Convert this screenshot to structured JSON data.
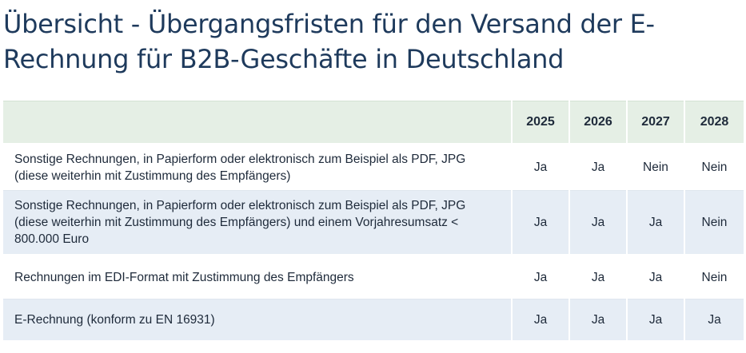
{
  "title": "Übersicht - Übergangsfristen für den Versand der E-Rechnung für B2B-Geschäfte in Deutschland",
  "table": {
    "header": {
      "description": "",
      "years": [
        "2025",
        "2026",
        "2027",
        "2028"
      ]
    },
    "rows": [
      {
        "description": "Sonstige Rechnungen, in Papierform oder elektronisch zum Beispiel als PDF, JPG (diese weiterhin mit Zustimmung des Empfängers)",
        "values": [
          "Ja",
          "Ja",
          "Nein",
          "Nein"
        ]
      },
      {
        "description": "Sonstige Rechnungen, in Papierform oder elektronisch zum Beispiel als PDF, JPG (diese weiterhin mit Zustimmung des Empfängers) und einem Vorjahresumsatz < 800.000 Euro",
        "values": [
          "Ja",
          "Ja",
          "Ja",
          "Nein"
        ]
      },
      {
        "description": "Rechnungen im EDI-Format mit Zustimmung des Empfängers",
        "values": [
          "Ja",
          "Ja",
          "Ja",
          "Nein"
        ]
      },
      {
        "description": "E-Rechnung (konform zu EN 16931)",
        "values": [
          "Ja",
          "Ja",
          "Ja",
          "Ja"
        ]
      }
    ]
  },
  "colors": {
    "title": "#1e3a5c",
    "header_background": "#e5efe5",
    "stripe_background": "#e6edf5",
    "text": "#1e2a3a"
  }
}
